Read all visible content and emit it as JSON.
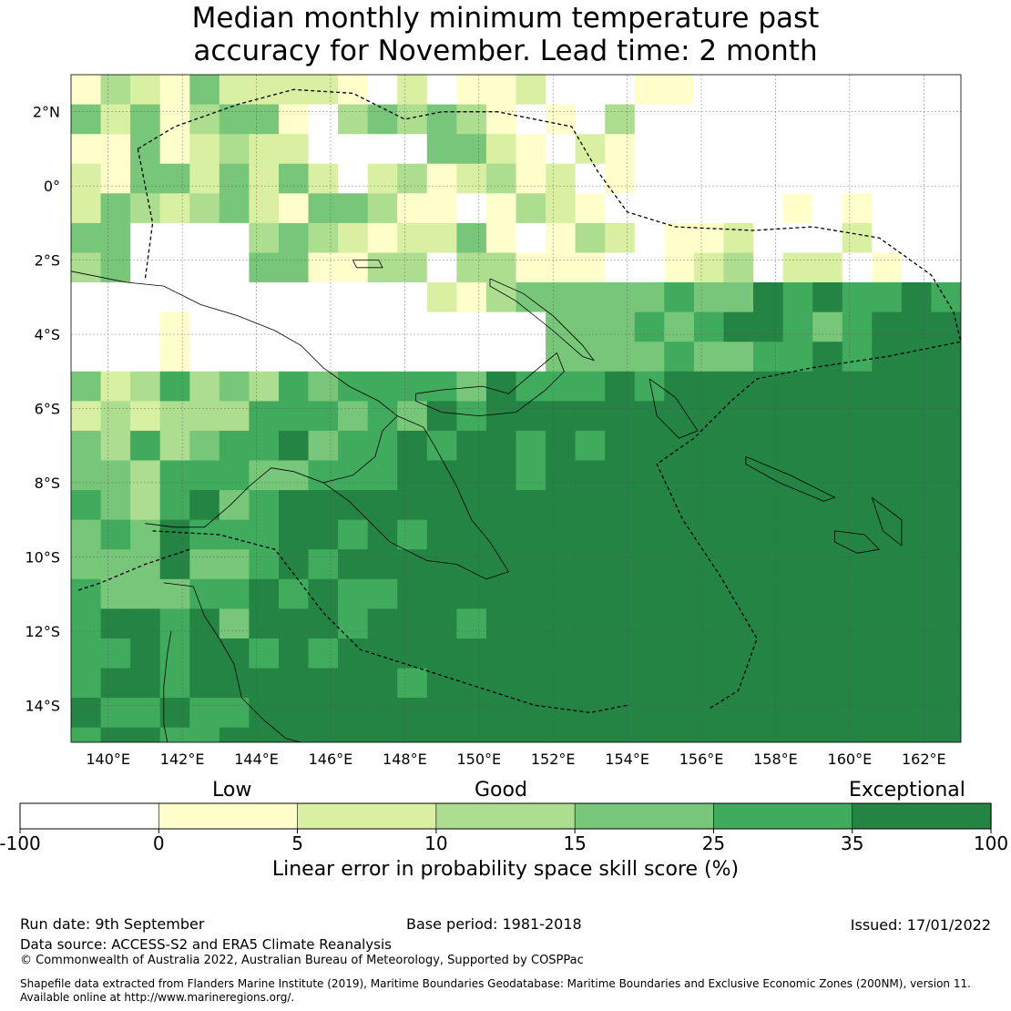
{
  "title": {
    "line1": "Median monthly minimum temperature past",
    "line2": "accuracy for November. Lead time: 2 month"
  },
  "map": {
    "lon_range": [
      139,
      163
    ],
    "lat_range": [
      -15,
      3
    ],
    "lon_ticks": [
      "140°E",
      "142°E",
      "144°E",
      "146°E",
      "148°E",
      "150°E",
      "152°E",
      "154°E",
      "156°E",
      "158°E",
      "160°E",
      "162°E"
    ],
    "lat_ticks": [
      "2°N",
      "0°",
      "2°S",
      "4°S",
      "6°S",
      "8°S",
      "10°S",
      "12°S",
      "14°S"
    ],
    "grid": true
  },
  "legend": {
    "categories": {
      "low": "Low",
      "good": "Good",
      "exceptional": "Exceptional"
    },
    "bins": [
      {
        "from": -100,
        "to": 0,
        "color": "#ffffff"
      },
      {
        "from": 0,
        "to": 5,
        "color": "#ffffcc"
      },
      {
        "from": 5,
        "to": 10,
        "color": "#d9f0a3"
      },
      {
        "from": 10,
        "to": 15,
        "color": "#addd8e"
      },
      {
        "from": 15,
        "to": 25,
        "color": "#78c679"
      },
      {
        "from": 25,
        "to": 35,
        "color": "#41ab5d"
      },
      {
        "from": 35,
        "to": 100,
        "color": "#238443"
      }
    ],
    "tick_labels": [
      "-100",
      "0",
      "5",
      "10",
      "15",
      "25",
      "35",
      "100"
    ],
    "axis_label": "Linear error in probability space skill score (%)"
  },
  "footer": {
    "run_date": "Run date: 9th September",
    "base_period": "Base period: 1981-2018",
    "issued": "Issued: 17/01/2022",
    "data_source": "Data source: ACCESS-S2 and ERA5 Climate Reanalysis",
    "copyright": "© Commonwealth of Australia 2022, Australian Bureau of Meteorology, Supported by COSPPac",
    "shapefile_1": "Shapefile data extracted from Flanders Marine Institute (2019), Maritime Boundaries Geodatabase: Maritime Boundaries and Exclusive Economic Zones (200NM), version 11.",
    "shapefile_2": "Available online at http://www.marineregions.org/."
  }
}
